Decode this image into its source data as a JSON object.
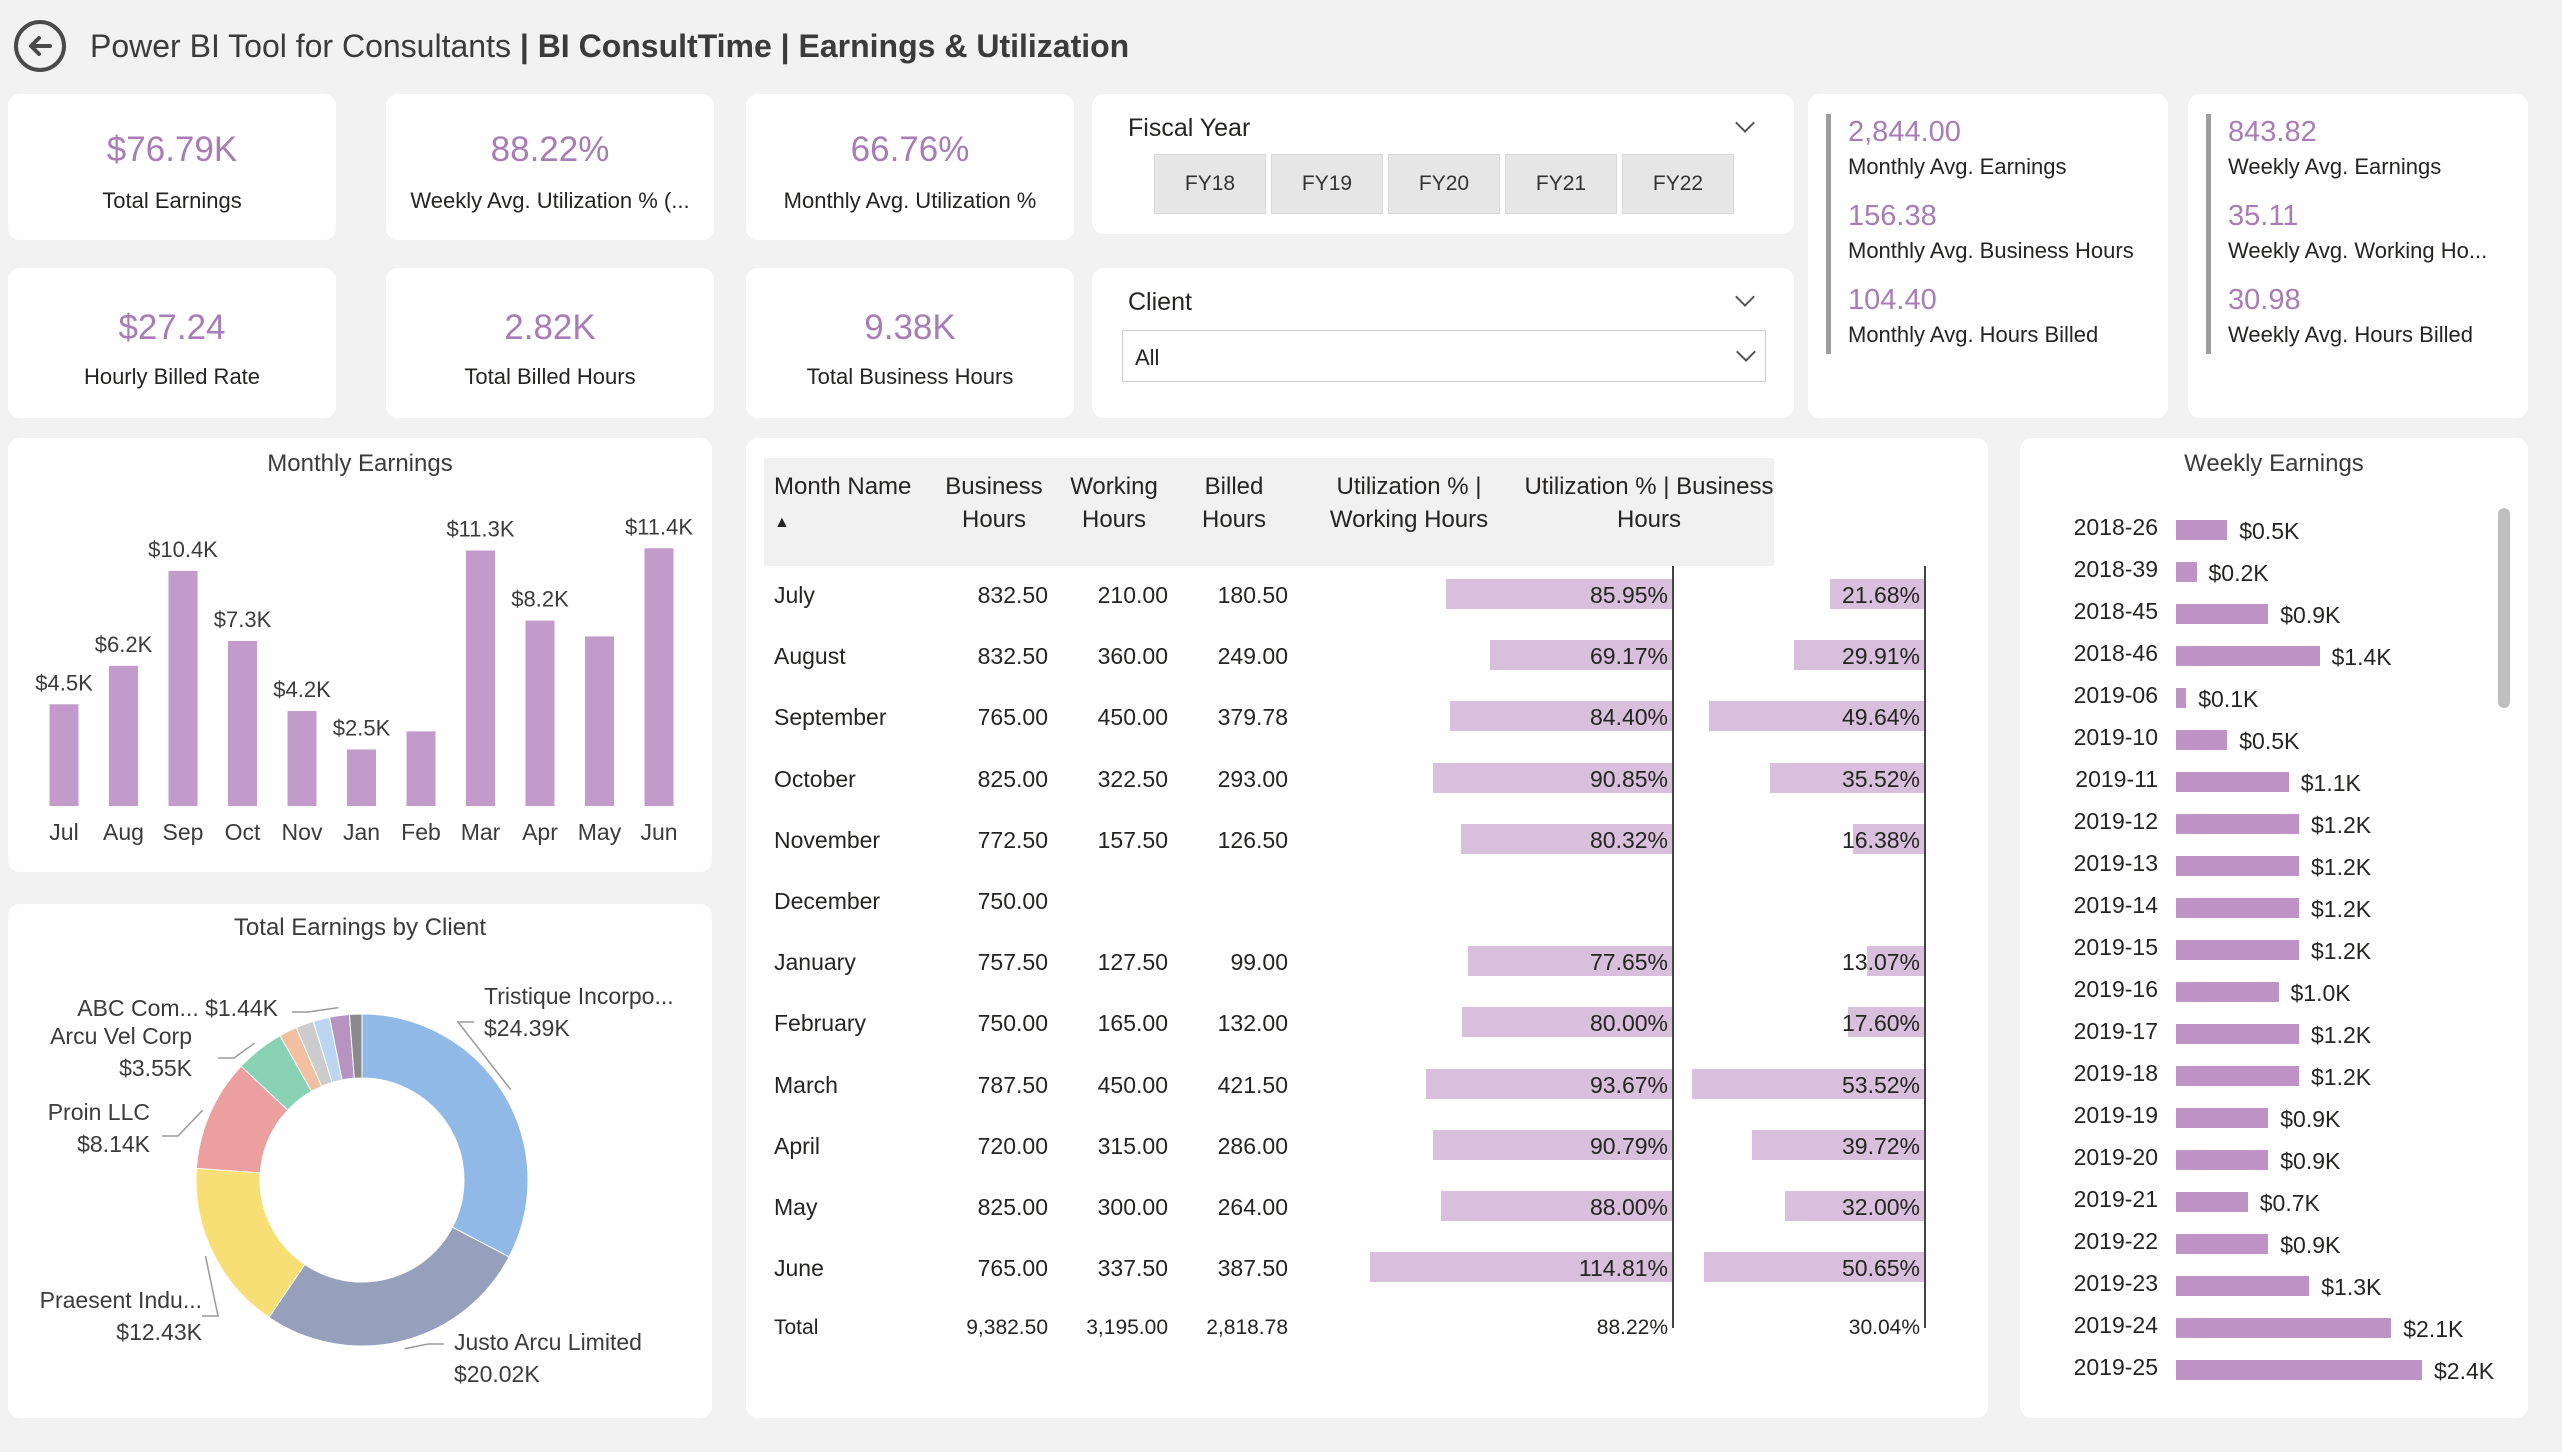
{
  "header": {
    "title_prefix": "Power BI Tool for Consultants",
    "title_main": " | BI ConsultTime | Earnings & Utilization"
  },
  "kpis": [
    {
      "value": "$76.79K",
      "label": "Total Earnings"
    },
    {
      "value": "88.22%",
      "label": "Weekly Avg. Utilization % (..."
    },
    {
      "value": "66.76%",
      "label": "Monthly Avg. Utilization %"
    },
    {
      "value": "$27.24",
      "label": "Hourly Billed Rate"
    },
    {
      "value": "2.82K",
      "label": "Total Billed Hours"
    },
    {
      "value": "9.38K",
      "label": "Total Business Hours"
    }
  ],
  "fiscal_year": {
    "title": "Fiscal Year",
    "options": [
      "FY18",
      "FY19",
      "FY20",
      "FY21",
      "FY22"
    ]
  },
  "client_slicer": {
    "title": "Client",
    "selected": "All"
  },
  "monthly_stats": [
    {
      "value": "2,844.00",
      "label": "Monthly Avg. Earnings"
    },
    {
      "value": "156.38",
      "label": "Monthly Avg. Business Hours"
    },
    {
      "value": "104.40",
      "label": "Monthly Avg. Hours Billed"
    }
  ],
  "weekly_stats": [
    {
      "value": "843.82",
      "label": "Weekly Avg. Earnings"
    },
    {
      "value": "35.11",
      "label": "Weekly Avg. Working Ho..."
    },
    {
      "value": "30.98",
      "label": "Weekly Avg. Hours Billed"
    }
  ],
  "monthly_chart": {
    "title": "Monthly Earnings",
    "color": "#c39bcb",
    "categories": [
      "Jul",
      "Aug",
      "Sep",
      "Oct",
      "Nov",
      "Jan",
      "Feb",
      "Mar",
      "Apr",
      "May",
      "Jun"
    ],
    "values": [
      4.5,
      6.2,
      10.4,
      7.3,
      4.2,
      2.5,
      3.3,
      11.3,
      8.2,
      7.5,
      11.4
    ],
    "labels": [
      "$4.5K",
      "$6.2K",
      "$10.4K",
      "$7.3K",
      "$4.2K",
      "$2.5K",
      "",
      "$11.3K",
      "$8.2K",
      "",
      "$11.4K"
    ]
  },
  "client_chart": {
    "title": "Total Earnings by Client",
    "slices": [
      {
        "name": "Tristique Incorpo...",
        "label": "$24.39K",
        "value": 24.39,
        "color": "#91b9e7"
      },
      {
        "name": "Justo Arcu Limited",
        "label": "$20.02K",
        "value": 20.02,
        "color": "#969fbb"
      },
      {
        "name": "Praesent Indu...",
        "label": "$12.43K",
        "value": 12.43,
        "color": "#f8df75"
      },
      {
        "name": "Proin LLC",
        "label": "$8.14K",
        "value": 8.14,
        "color": "#eb9f9f"
      },
      {
        "name": "Arcu Vel Corp",
        "label": "$3.55K",
        "value": 3.55,
        "color": "#89d2b4"
      },
      {
        "name": "s6",
        "label": "",
        "value": 1.3,
        "color": "#f2bfa0"
      },
      {
        "name": "s7",
        "label": "",
        "value": 1.3,
        "color": "#cccccc"
      },
      {
        "name": "s8",
        "label": "",
        "value": 1.2,
        "color": "#bcd6f2"
      },
      {
        "name": "ABC Com...",
        "label": "$1.44K",
        "value": 1.44,
        "color": "#b793c2"
      },
      {
        "name": "s10",
        "label": "",
        "value": 0.9,
        "color": "#8a8a8a"
      }
    ]
  },
  "table": {
    "columns": [
      "Month Name",
      "Business Hours",
      "Working Hours",
      "Billed Hours",
      "Utilization % | Working Hours",
      "Utilization % | Business Hours"
    ],
    "rows": [
      {
        "month": "July",
        "business": "832.50",
        "working": "210.00",
        "billed": "180.50",
        "util_w": "85.95%",
        "uw": 85.95,
        "util_b": "21.68%",
        "ub": 21.68
      },
      {
        "month": "August",
        "business": "832.50",
        "working": "360.00",
        "billed": "249.00",
        "util_w": "69.17%",
        "uw": 69.17,
        "util_b": "29.91%",
        "ub": 29.91
      },
      {
        "month": "September",
        "business": "765.00",
        "working": "450.00",
        "billed": "379.78",
        "util_w": "84.40%",
        "uw": 84.4,
        "util_b": "49.64%",
        "ub": 49.64
      },
      {
        "month": "October",
        "business": "825.00",
        "working": "322.50",
        "billed": "293.00",
        "util_w": "90.85%",
        "uw": 90.85,
        "util_b": "35.52%",
        "ub": 35.52
      },
      {
        "month": "November",
        "business": "772.50",
        "working": "157.50",
        "billed": "126.50",
        "util_w": "80.32%",
        "uw": 80.32,
        "util_b": "16.38%",
        "ub": 16.38
      },
      {
        "month": "December",
        "business": "750.00",
        "working": "",
        "billed": "",
        "util_w": "",
        "uw": 0,
        "util_b": "",
        "ub": 0
      },
      {
        "month": "January",
        "business": "757.50",
        "working": "127.50",
        "billed": "99.00",
        "util_w": "77.65%",
        "uw": 77.65,
        "util_b": "13.07%",
        "ub": 13.07
      },
      {
        "month": "February",
        "business": "750.00",
        "working": "165.00",
        "billed": "132.00",
        "util_w": "80.00%",
        "uw": 80.0,
        "util_b": "17.60%",
        "ub": 17.6
      },
      {
        "month": "March",
        "business": "787.50",
        "working": "450.00",
        "billed": "421.50",
        "util_w": "93.67%",
        "uw": 93.67,
        "util_b": "53.52%",
        "ub": 53.52
      },
      {
        "month": "April",
        "business": "720.00",
        "working": "315.00",
        "billed": "286.00",
        "util_w": "90.79%",
        "uw": 90.79,
        "util_b": "39.72%",
        "ub": 39.72
      },
      {
        "month": "May",
        "business": "825.00",
        "working": "300.00",
        "billed": "264.00",
        "util_w": "88.00%",
        "uw": 88.0,
        "util_b": "32.00%",
        "ub": 32.0
      },
      {
        "month": "June",
        "business": "765.00",
        "working": "337.50",
        "billed": "387.50",
        "util_w": "114.81%",
        "uw": 114.81,
        "util_b": "50.65%",
        "ub": 50.65
      }
    ],
    "total": {
      "month": "Total",
      "business": "9,382.50",
      "working": "3,195.00",
      "billed": "2,818.78",
      "util_w": "88.22%",
      "util_b": "30.04%"
    },
    "bar_color": "#d8bfdc"
  },
  "weekly_chart": {
    "title": "Weekly Earnings",
    "color": "#bf93c6",
    "rows": [
      {
        "week": "2018-26",
        "value": 0.5,
        "label": "$0.5K"
      },
      {
        "week": "2018-39",
        "value": 0.2,
        "label": "$0.2K"
      },
      {
        "week": "2018-45",
        "value": 0.9,
        "label": "$0.9K"
      },
      {
        "week": "2018-46",
        "value": 1.4,
        "label": "$1.4K"
      },
      {
        "week": "2019-06",
        "value": 0.1,
        "label": "$0.1K"
      },
      {
        "week": "2019-10",
        "value": 0.5,
        "label": "$0.5K"
      },
      {
        "week": "2019-11",
        "value": 1.1,
        "label": "$1.1K"
      },
      {
        "week": "2019-12",
        "value": 1.2,
        "label": "$1.2K"
      },
      {
        "week": "2019-13",
        "value": 1.2,
        "label": "$1.2K"
      },
      {
        "week": "2019-14",
        "value": 1.2,
        "label": "$1.2K"
      },
      {
        "week": "2019-15",
        "value": 1.2,
        "label": "$1.2K"
      },
      {
        "week": "2019-16",
        "value": 1.0,
        "label": "$1.0K"
      },
      {
        "week": "2019-17",
        "value": 1.2,
        "label": "$1.2K"
      },
      {
        "week": "2019-18",
        "value": 1.2,
        "label": "$1.2K"
      },
      {
        "week": "2019-19",
        "value": 0.9,
        "label": "$0.9K"
      },
      {
        "week": "2019-20",
        "value": 0.9,
        "label": "$0.9K"
      },
      {
        "week": "2019-21",
        "value": 0.7,
        "label": "$0.7K"
      },
      {
        "week": "2019-22",
        "value": 0.9,
        "label": "$0.9K"
      },
      {
        "week": "2019-23",
        "value": 1.3,
        "label": "$1.3K"
      },
      {
        "week": "2019-24",
        "value": 2.1,
        "label": "$2.1K"
      },
      {
        "week": "2019-25",
        "value": 2.4,
        "label": "$2.4K"
      }
    ]
  }
}
